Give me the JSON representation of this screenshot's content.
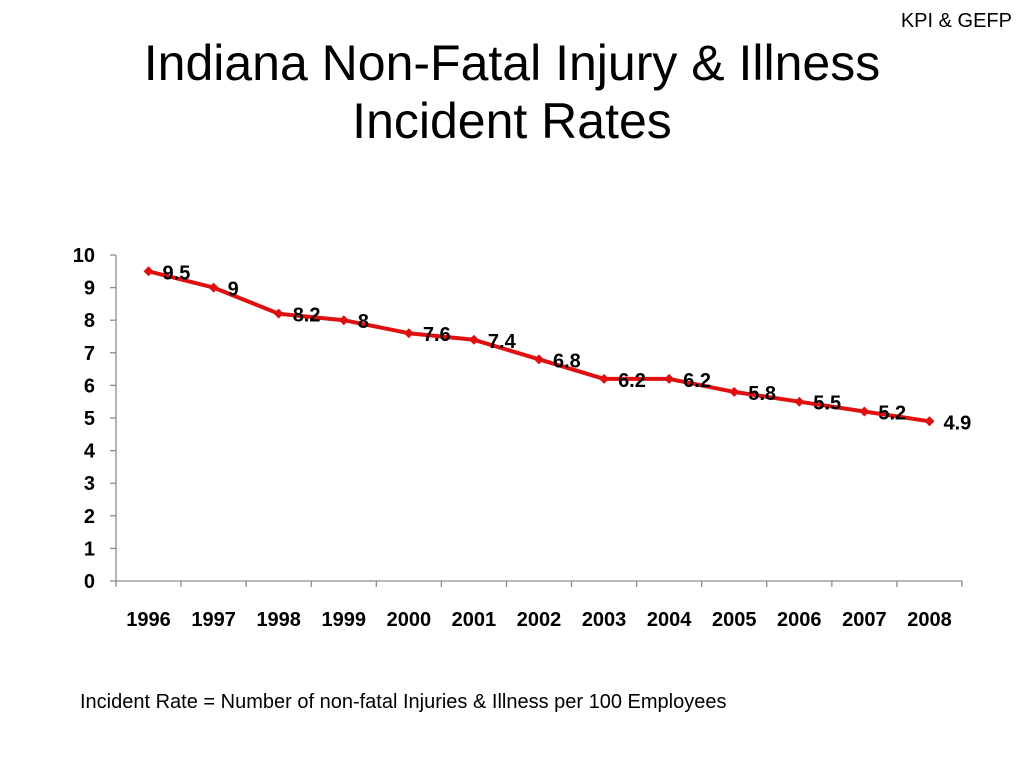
{
  "header": {
    "corner_label": "KPI & GEFP",
    "title_line1": "Indiana Non-Fatal Injury & Illness",
    "title_line2": "Incident Rates"
  },
  "footnote": "Incident Rate = Number of non-fatal Injuries & Illness per 100 Employees",
  "chart_data": {
    "type": "line",
    "title": "",
    "xlabel": "",
    "ylabel": "",
    "categories": [
      "1996",
      "1997",
      "1998",
      "1999",
      "2000",
      "2001",
      "2002",
      "2003",
      "2004",
      "2005",
      "2006",
      "2007",
      "2008"
    ],
    "series": [
      {
        "values": [
          9.5,
          9,
          8.2,
          8,
          7.6,
          7.4,
          6.8,
          6.2,
          6.2,
          5.8,
          5.5,
          5.2,
          4.9
        ],
        "labels": [
          "9.5",
          "9",
          "8.2",
          "8",
          "7.6",
          "7.4",
          "6.8",
          "6.2",
          "6.2",
          "5.8",
          "5.5",
          "5.2",
          "4.9"
        ],
        "color": "#e01010",
        "marker": "diamond"
      }
    ],
    "ylim": [
      0,
      10
    ],
    "yticks": [
      "0",
      "1",
      "2",
      "3",
      "4",
      "5",
      "6",
      "7",
      "8",
      "9",
      "10"
    ],
    "grid": false,
    "legend": "none",
    "axis_color": "#8c8c8c"
  }
}
